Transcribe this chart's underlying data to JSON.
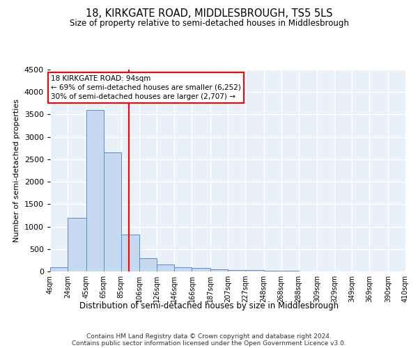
{
  "title": "18, KIRKGATE ROAD, MIDDLESBROUGH, TS5 5LS",
  "subtitle": "Size of property relative to semi-detached houses in Middlesbrough",
  "xlabel": "Distribution of semi-detached houses by size in Middlesbrough",
  "ylabel": "Number of semi-detached properties",
  "footer1": "Contains HM Land Registry data © Crown copyright and database right 2024.",
  "footer2": "Contains public sector information licensed under the Open Government Licence v3.0.",
  "bar_edges": [
    4,
    24,
    45,
    65,
    85,
    106,
    126,
    146,
    166,
    187,
    207,
    227,
    248,
    268,
    288,
    309,
    329,
    349,
    369,
    390,
    410
  ],
  "bar_heights": [
    100,
    1200,
    3600,
    2650,
    820,
    290,
    160,
    100,
    70,
    50,
    30,
    25,
    15,
    8,
    5,
    4,
    3,
    2,
    2,
    1
  ],
  "bar_color": "#c6d9f0",
  "bar_edge_color": "#5a8fc3",
  "property_line_x": 94,
  "annotation_line1": "18 KIRKGATE ROAD: 94sqm",
  "annotation_line2": "← 69% of semi-detached houses are smaller (6,252)",
  "annotation_line3": "30% of semi-detached houses are larger (2,707) →",
  "ylim": [
    0,
    4500
  ],
  "yticks": [
    0,
    500,
    1000,
    1500,
    2000,
    2500,
    3000,
    3500,
    4000,
    4500
  ],
  "bg_color": "#eaf0f8",
  "grid_color": "#ffffff",
  "tick_labels": [
    "4sqm",
    "24sqm",
    "45sqm",
    "65sqm",
    "85sqm",
    "106sqm",
    "126sqm",
    "146sqm",
    "166sqm",
    "187sqm",
    "207sqm",
    "227sqm",
    "248sqm",
    "268sqm",
    "288sqm",
    "309sqm",
    "329sqm",
    "349sqm",
    "369sqm",
    "390sqm",
    "410sqm"
  ]
}
